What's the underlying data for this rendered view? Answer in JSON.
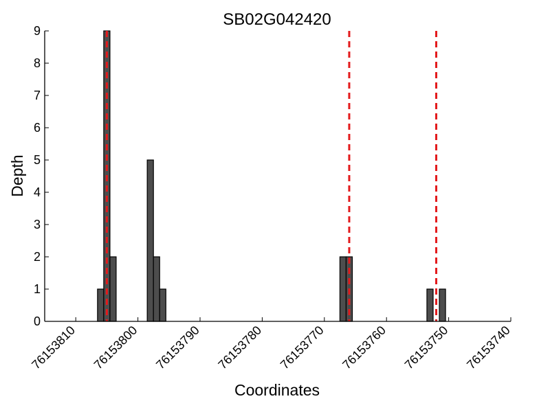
{
  "chart_data": {
    "type": "bar",
    "title": "SB02G042420",
    "xlabel": "Coordinates",
    "ylabel": "Depth",
    "x_reversed": true,
    "xlim": [
      76153815,
      76153740
    ],
    "ylim": [
      0,
      9
    ],
    "x_ticks": [
      76153810,
      76153800,
      76153790,
      76153780,
      76153770,
      76153760,
      76153750,
      76153740
    ],
    "y_ticks": [
      0,
      1,
      2,
      3,
      4,
      5,
      6,
      7,
      8,
      9
    ],
    "bars": [
      {
        "x": 76153806,
        "value": 1
      },
      {
        "x": 76153805,
        "value": 9
      },
      {
        "x": 76153804,
        "value": 2
      },
      {
        "x": 76153798,
        "value": 5
      },
      {
        "x": 76153797,
        "value": 2
      },
      {
        "x": 76153796,
        "value": 1
      },
      {
        "x": 76153767,
        "value": 2
      },
      {
        "x": 76153766,
        "value": 2
      },
      {
        "x": 76153753,
        "value": 1
      },
      {
        "x": 76153751,
        "value": 1
      }
    ],
    "reference_lines": [
      76153805,
      76153766,
      76153752
    ],
    "bar_color": "#4d4d4d",
    "reference_line_color": "#e31a1c",
    "grid": false
  }
}
